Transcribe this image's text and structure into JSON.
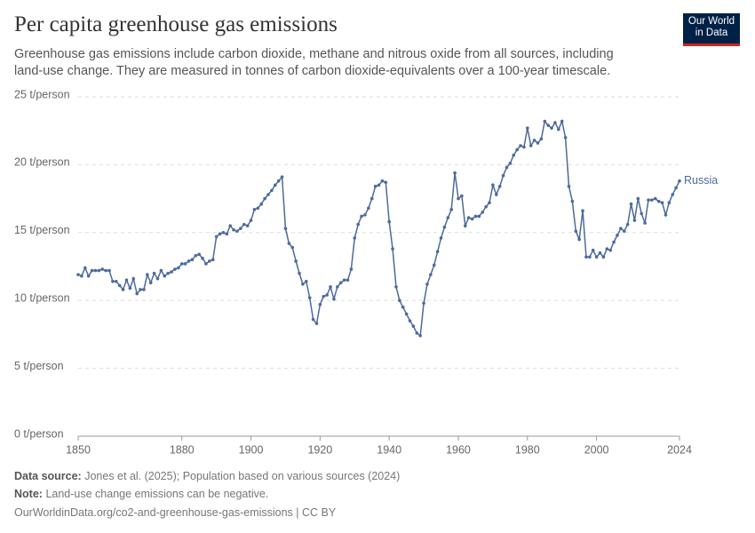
{
  "chart_data": {
    "type": "line",
    "title": "Per capita greenhouse gas emissions",
    "subtitle": "Greenhouse gas emissions include carbon dioxide, methane and nitrous oxide from all sources, including land-use change. They are measured in tonnes of carbon dioxide-equivalents over a 100-year timescale.",
    "x": [
      1850,
      1851,
      1852,
      1853,
      1854,
      1855,
      1856,
      1857,
      1858,
      1859,
      1860,
      1861,
      1862,
      1863,
      1864,
      1865,
      1866,
      1867,
      1868,
      1869,
      1870,
      1871,
      1872,
      1873,
      1874,
      1875,
      1876,
      1877,
      1878,
      1879,
      1880,
      1881,
      1882,
      1883,
      1884,
      1885,
      1886,
      1887,
      1888,
      1889,
      1890,
      1891,
      1892,
      1893,
      1894,
      1895,
      1896,
      1897,
      1898,
      1899,
      1900,
      1901,
      1902,
      1903,
      1904,
      1905,
      1906,
      1907,
      1908,
      1909,
      1910,
      1911,
      1912,
      1913,
      1914,
      1915,
      1916,
      1917,
      1918,
      1919,
      1920,
      1921,
      1922,
      1923,
      1924,
      1925,
      1926,
      1927,
      1928,
      1929,
      1930,
      1931,
      1932,
      1933,
      1934,
      1935,
      1936,
      1937,
      1938,
      1939,
      1940,
      1941,
      1942,
      1943,
      1944,
      1945,
      1946,
      1947,
      1948,
      1949,
      1950,
      1951,
      1952,
      1953,
      1954,
      1955,
      1956,
      1957,
      1958,
      1959,
      1960,
      1961,
      1962,
      1963,
      1964,
      1965,
      1966,
      1967,
      1968,
      1969,
      1970,
      1971,
      1972,
      1973,
      1974,
      1975,
      1976,
      1977,
      1978,
      1979,
      1980,
      1981,
      1982,
      1983,
      1984,
      1985,
      1986,
      1987,
      1988,
      1989,
      1990,
      1991,
      1992,
      1993,
      1994,
      1995,
      1996,
      1997,
      1998,
      1999,
      2000,
      2001,
      2002,
      2003,
      2004,
      2005,
      2006,
      2007,
      2008,
      2009,
      2010,
      2011,
      2012,
      2013,
      2014,
      2015,
      2016,
      2017,
      2018,
      2019,
      2020,
      2021,
      2022,
      2023,
      2024
    ],
    "series": [
      {
        "name": "Russia",
        "color": "#4c6a9c",
        "values": [
          11.9,
          11.8,
          12.4,
          11.8,
          12.2,
          12.2,
          12.2,
          12.3,
          12.2,
          12.2,
          11.4,
          11.4,
          11.1,
          10.8,
          11.5,
          10.9,
          11.6,
          10.5,
          10.8,
          10.8,
          11.9,
          11.3,
          12.0,
          11.6,
          12.2,
          11.8,
          12.0,
          12.1,
          12.3,
          12.4,
          12.7,
          12.7,
          12.9,
          13.0,
          13.3,
          13.4,
          13.1,
          12.7,
          12.9,
          13.0,
          14.7,
          14.9,
          15.0,
          14.9,
          15.5,
          15.2,
          15.1,
          15.3,
          15.6,
          15.5,
          15.9,
          16.7,
          16.8,
          17.1,
          17.5,
          17.8,
          18.1,
          18.5,
          18.8,
          19.1,
          15.3,
          14.2,
          13.9,
          12.9,
          12.0,
          11.2,
          11.4,
          10.2,
          8.6,
          8.3,
          9.7,
          10.3,
          10.4,
          11.0,
          10.1,
          11.0,
          11.3,
          11.5,
          11.5,
          12.3,
          14.6,
          15.6,
          16.2,
          16.3,
          16.8,
          17.5,
          18.4,
          18.5,
          18.8,
          18.7,
          15.8,
          13.8,
          11.0,
          10.0,
          9.5,
          9.0,
          8.5,
          8.1,
          7.6,
          7.4,
          9.8,
          11.2,
          11.9,
          12.6,
          13.6,
          14.6,
          15.4,
          16.1,
          16.7,
          19.4,
          17.5,
          17.7,
          15.5,
          16.1,
          16.0,
          16.2,
          16.2,
          16.5,
          16.9,
          17.2,
          18.5,
          17.8,
          18.4,
          19.2,
          19.8,
          20.1,
          20.7,
          21.1,
          21.4,
          21.3,
          22.7,
          21.4,
          21.8,
          21.6,
          21.9,
          23.2,
          22.9,
          22.7,
          23.1,
          22.6,
          23.2,
          22.0,
          18.4,
          17.3,
          15.1,
          14.5,
          16.6,
          13.2,
          13.2,
          13.7,
          13.2,
          13.5,
          13.2,
          13.8,
          13.7,
          14.3,
          14.8,
          15.3,
          15.1,
          15.6,
          17.1,
          15.9,
          17.5,
          16.4,
          15.7,
          17.4,
          17.4,
          17.5,
          17.3,
          17.2,
          16.3,
          17.2,
          17.8,
          18.3,
          18.8
        ]
      }
    ],
    "xlim": [
      1850,
      2024
    ],
    "xticks": [
      1850,
      1880,
      1900,
      1920,
      1940,
      1960,
      1980,
      2000,
      2024
    ],
    "ylim": [
      0,
      25
    ],
    "yticks": [
      {
        "value": 0,
        "label": "0 t/person"
      },
      {
        "value": 5,
        "label": "5 t/person"
      },
      {
        "value": 10,
        "label": "10 t/person"
      },
      {
        "value": 15,
        "label": "15 t/person"
      },
      {
        "value": 20,
        "label": "20 t/person"
      },
      {
        "value": 25,
        "label": "25 t/person"
      }
    ],
    "grid": true,
    "source_label": "Data source:",
    "source": "Jones et al. (2025); Population based on various sources (2024)",
    "note_label": "Note:",
    "note": "Land-use change emissions can be negative.",
    "url": "OurWorldinData.org/co2-and-greenhouse-gas-emissions | CC BY"
  },
  "logo": {
    "line1": "Our World",
    "line2": "in Data"
  }
}
